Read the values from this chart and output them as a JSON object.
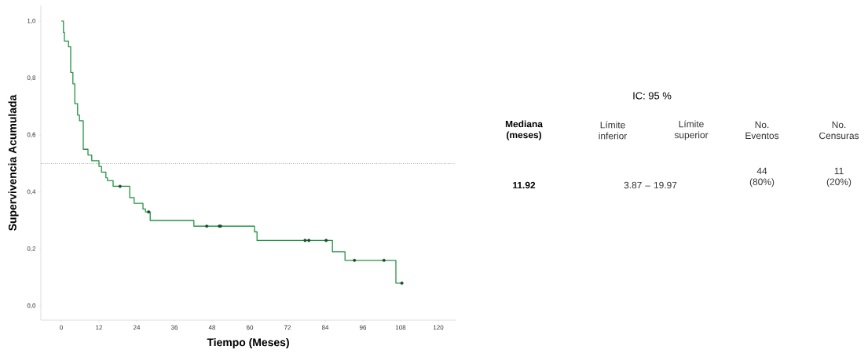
{
  "chart_data": [
    {
      "type": "step",
      "xlabel": "Tiempo (Meses)",
      "ylabel": "Supervivencia Acumulada",
      "xlim": [
        -6.5,
        125.5
      ],
      "ylim": [
        -0.05,
        1.055
      ],
      "xticks": [
        0,
        12,
        24,
        36,
        48,
        60,
        72,
        84,
        96,
        108,
        120
      ],
      "yticks": [
        {
          "value": 0,
          "label": "0,0"
        },
        {
          "value": 0.2,
          "label": "0,2"
        },
        {
          "value": 0.4,
          "label": "0,4"
        },
        {
          "value": 0.6,
          "label": "0,6"
        },
        {
          "value": 0.8,
          "label": "0,8"
        },
        {
          "value": 1.0,
          "label": "1,0"
        }
      ],
      "ref_lines": [
        {
          "axis": "y",
          "value": 0.5,
          "color": "#000000",
          "line_style": "dotted"
        }
      ],
      "series": [
        {
          "type": "step",
          "color": "#239245",
          "x": [
            0,
            0.7,
            1.0,
            2.3,
            3.0,
            3.7,
            4.3,
            5.2,
            5.8,
            7.0,
            8.5,
            9.7,
            12.0,
            12.8,
            14.2,
            14.7,
            16.5,
            21.8,
            23.2,
            26.0,
            26.8,
            28.3,
            42.2,
            61.5,
            62.3,
            86.3,
            90.3,
            106.5,
            108.4
          ],
          "values": [
            1.0,
            0.96,
            0.93,
            0.91,
            0.82,
            0.78,
            0.71,
            0.67,
            0.65,
            0.55,
            0.53,
            0.51,
            0.49,
            0.47,
            0.45,
            0.44,
            0.42,
            0.38,
            0.36,
            0.34,
            0.33,
            0.3,
            0.28,
            0.26,
            0.23,
            0.19,
            0.16,
            0.08,
            0.08
          ]
        },
        {
          "type": "scatter",
          "color": "#1b4d2e",
          "marker": "circle",
          "x": [
            18.7,
            27.8,
            46.3,
            50.3,
            50.7,
            77.6,
            78.8,
            84.3,
            93.3,
            102.7,
            108.4
          ],
          "values": [
            0.42,
            0.33,
            0.28,
            0.28,
            0.28,
            0.23,
            0.23,
            0.23,
            0.16,
            0.16,
            0.08
          ]
        }
      ]
    },
    {
      "type": "other",
      "title": "IC: 95 %",
      "annotations": [
        "Mediana (meses)",
        "Límite inferior",
        "Límite superior",
        "No. Eventos",
        "No. Censuras",
        "11.92",
        "3.87 –  19.97",
        "44 (80%)",
        "11 (20%)"
      ]
    }
  ]
}
